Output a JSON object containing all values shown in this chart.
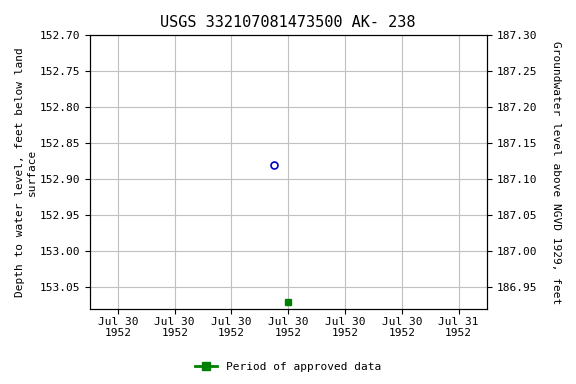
{
  "title": "USGS 332107081473500 AK- 238",
  "ylabel_left": "Depth to water level, feet below land\nsurface",
  "ylabel_right": "Groundwater level above NGVD 1929, feet",
  "ylim_left_top": 152.7,
  "ylim_left_bottom": 153.08,
  "ylim_right_top": 187.3,
  "ylim_right_bottom": 186.92,
  "yticks_left": [
    152.7,
    152.75,
    152.8,
    152.85,
    152.9,
    152.95,
    153.0,
    153.05
  ],
  "yticks_right": [
    187.3,
    187.25,
    187.2,
    187.15,
    187.1,
    187.05,
    187.0,
    186.95
  ],
  "xtick_dates_hours": [
    0,
    4,
    8,
    12,
    16,
    20,
    24
  ],
  "xtick_labels": [
    "Jul 30\n1952",
    "Jul 30\n1952",
    "Jul 30\n1952",
    "Jul 30\n1952",
    "Jul 30\n1952",
    "Jul 30\n1952",
    "Jul 31\n1952"
  ],
  "xlim_start_hours": -2,
  "xlim_end_hours": 26,
  "data_open_hours": 11,
  "data_open_value": 152.88,
  "data_filled_hours": 12,
  "data_filled_value": 153.07,
  "open_marker_color": "#0000cc",
  "filled_marker_color": "#008000",
  "grid_color": "#c0c0c0",
  "background_color": "#ffffff",
  "title_fontsize": 11,
  "axis_label_fontsize": 8,
  "tick_fontsize": 8,
  "legend_label": "Period of approved data",
  "legend_color": "#008000"
}
